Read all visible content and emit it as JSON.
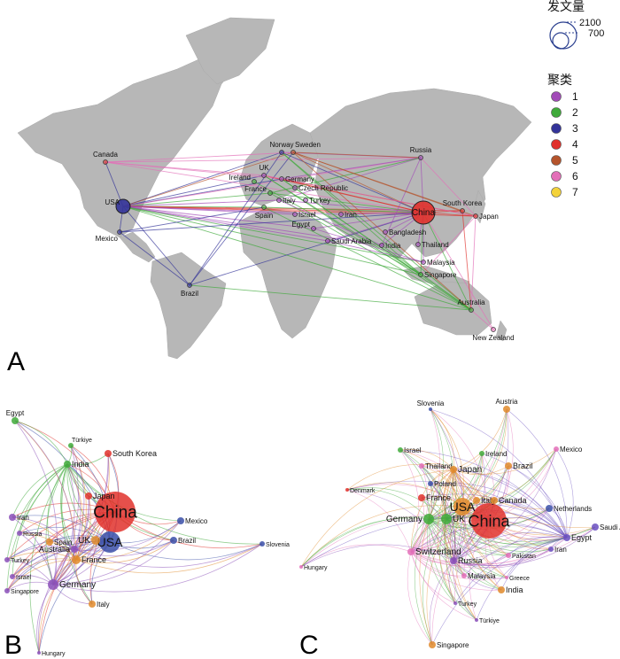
{
  "panels": {
    "a": "A",
    "b": "B",
    "c": "C"
  },
  "legend": {
    "size_title": "发文量",
    "size_values": [
      "2100",
      "700"
    ],
    "cluster_title": "聚类",
    "clusters": [
      {
        "label": "1",
        "color": "#a24bb8"
      },
      {
        "label": "2",
        "color": "#3faa3a"
      },
      {
        "label": "3",
        "color": "#333399"
      },
      {
        "label": "4",
        "color": "#e0312c"
      },
      {
        "label": "5",
        "color": "#b5542c"
      },
      {
        "label": "6",
        "color": "#e36fb8"
      },
      {
        "label": "7",
        "color": "#f3d23a"
      }
    ]
  },
  "map_nodes": [
    {
      "label": "USA",
      "cluster": 3,
      "big": true
    },
    {
      "label": "China",
      "cluster": 4,
      "big": true
    },
    {
      "label": "Canada",
      "cluster": 4
    },
    {
      "label": "Mexico",
      "cluster": 3
    },
    {
      "label": "Brazil",
      "cluster": 3
    },
    {
      "label": "Norway",
      "cluster": 3
    },
    {
      "label": "Sweden",
      "cluster": 5
    },
    {
      "label": "UK",
      "cluster": 1
    },
    {
      "label": "Ireland",
      "cluster": 2
    },
    {
      "label": "Germany",
      "cluster": 1
    },
    {
      "label": "Czech Republic",
      "cluster": 1
    },
    {
      "label": "France",
      "cluster": 2
    },
    {
      "label": "Italy",
      "cluster": 1
    },
    {
      "label": "Spain",
      "cluster": 2
    },
    {
      "label": "Turkey",
      "cluster": 1
    },
    {
      "label": "Israel",
      "cluster": 1
    },
    {
      "label": "Iran",
      "cluster": 1
    },
    {
      "label": "Egypt",
      "cluster": 1
    },
    {
      "label": "Saudi Arabia",
      "cluster": 1
    },
    {
      "label": "Russia",
      "cluster": 1
    },
    {
      "label": "South Korea",
      "cluster": 4
    },
    {
      "label": "Japan",
      "cluster": 4
    },
    {
      "label": "Bangladesh",
      "cluster": 1
    },
    {
      "label": "India",
      "cluster": 1
    },
    {
      "label": "Thailand",
      "cluster": 1
    },
    {
      "label": "Malaysia",
      "cluster": 1
    },
    {
      "label": "Singapore",
      "cluster": 2
    },
    {
      "label": "Australia",
      "cluster": 2
    },
    {
      "label": "New Zealand",
      "cluster": 6
    }
  ],
  "net_b": [
    {
      "label": "China"
    },
    {
      "label": "USA"
    },
    {
      "label": "Egypt"
    },
    {
      "label": "Türkiye"
    },
    {
      "label": "South Korea"
    },
    {
      "label": "India"
    },
    {
      "label": "Japan"
    },
    {
      "label": "Iran"
    },
    {
      "label": "Russia"
    },
    {
      "label": "Spain"
    },
    {
      "label": "UK"
    },
    {
      "label": "Australia"
    },
    {
      "label": "France"
    },
    {
      "label": "Turkey"
    },
    {
      "label": "Israel"
    },
    {
      "label": "Singapore"
    },
    {
      "label": "Germany"
    },
    {
      "label": "Italy"
    },
    {
      "label": "Mexico"
    },
    {
      "label": "Brazil"
    },
    {
      "label": "Slovenia"
    },
    {
      "label": "Hungary"
    }
  ],
  "net_c": [
    {
      "label": "China"
    },
    {
      "label": "USA"
    },
    {
      "label": "Slovenia"
    },
    {
      "label": "Austria"
    },
    {
      "label": "Israel"
    },
    {
      "label": "Ireland"
    },
    {
      "label": "Mexico"
    },
    {
      "label": "Thailand"
    },
    {
      "label": "Brazil"
    },
    {
      "label": "Japan"
    },
    {
      "label": "Poland"
    },
    {
      "label": "Denmark"
    },
    {
      "label": "France"
    },
    {
      "label": "Italy"
    },
    {
      "label": "Canada"
    },
    {
      "label": "Netherlands"
    },
    {
      "label": "Germany"
    },
    {
      "label": "UK"
    },
    {
      "label": "Saudi Arabia"
    },
    {
      "label": "Egypt"
    },
    {
      "label": "Iran"
    },
    {
      "label": "Switzerland"
    },
    {
      "label": "Pakistan"
    },
    {
      "label": "Russia"
    },
    {
      "label": "Hungary"
    },
    {
      "label": "Greece"
    },
    {
      "label": "Malaysia"
    },
    {
      "label": "India"
    },
    {
      "label": "Turkey"
    },
    {
      "label": "Türkiye"
    },
    {
      "label": "Singapore"
    }
  ]
}
